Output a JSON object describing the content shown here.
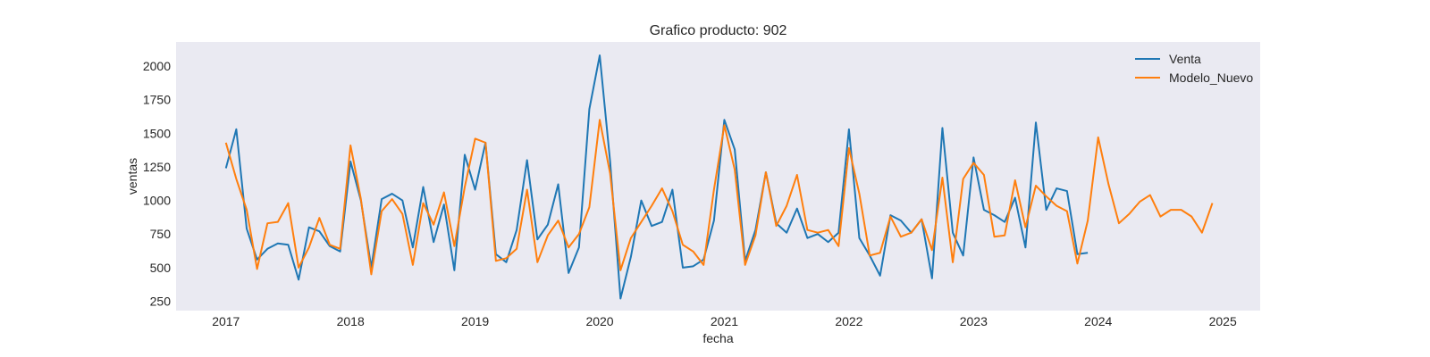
{
  "chart_data": {
    "type": "line",
    "title": "Grafico producto: 902",
    "xlabel": "fecha",
    "ylabel": "ventas",
    "xlim": [
      2016.6,
      2025.3
    ],
    "ylim": [
      180,
      2180
    ],
    "x_ticks": [
      2017,
      2018,
      2019,
      2020,
      2021,
      2022,
      2023,
      2024,
      2025
    ],
    "x_tick_labels": [
      "2017",
      "2018",
      "2019",
      "2020",
      "2021",
      "2022",
      "2023",
      "2024",
      "2025"
    ],
    "y_ticks": [
      250,
      500,
      750,
      1000,
      1250,
      1500,
      1750,
      2000
    ],
    "y_tick_labels": [
      "250",
      "500",
      "750",
      "1000",
      "1250",
      "1500",
      "1750",
      "2000"
    ],
    "grid": false,
    "background": "#eaeaf2",
    "legend_position": "top-right",
    "x_unit": "year (monthly points)",
    "series": [
      {
        "name": "Venta",
        "color": "#1f77b4",
        "x_start": 2017.0,
        "x_step": 0.08333,
        "values": [
          1240,
          1530,
          790,
          560,
          640,
          680,
          670,
          410,
          800,
          770,
          660,
          620,
          1290,
          1000,
          500,
          1010,
          1050,
          1000,
          650,
          1100,
          690,
          970,
          480,
          1340,
          1080,
          1430,
          600,
          540,
          780,
          1300,
          710,
          820,
          1120,
          460,
          650,
          1680,
          2080,
          1290,
          270,
          580,
          1000,
          810,
          840,
          1080,
          500,
          510,
          560,
          850,
          1600,
          1380,
          550,
          780,
          1210,
          830,
          760,
          940,
          720,
          750,
          690,
          760,
          1530,
          720,
          590,
          440,
          890,
          850,
          760,
          860,
          420,
          1540,
          760,
          590,
          1320,
          930,
          890,
          840,
          1020,
          650,
          1580,
          930,
          1090,
          1070,
          600,
          610
        ]
      },
      {
        "name": "Modelo_Nuevo",
        "color": "#ff7f0e",
        "x_start": 2017.0,
        "x_step": 0.08333,
        "values": [
          1430,
          1160,
          930,
          490,
          830,
          840,
          980,
          500,
          650,
          870,
          670,
          640,
          1410,
          1010,
          450,
          920,
          1010,
          900,
          520,
          980,
          820,
          1060,
          660,
          1100,
          1460,
          1430,
          550,
          570,
          640,
          1080,
          540,
          740,
          850,
          650,
          750,
          950,
          1600,
          1200,
          480,
          720,
          840,
          960,
          1090,
          920,
          670,
          620,
          520,
          1080,
          1560,
          1230,
          520,
          740,
          1210,
          810,
          960,
          1190,
          780,
          760,
          780,
          660,
          1390,
          1050,
          590,
          610,
          880,
          730,
          760,
          860,
          630,
          1170,
          540,
          1160,
          1280,
          1190,
          730,
          740,
          1150,
          800,
          1110,
          1030,
          960,
          920,
          530,
          850,
          1470,
          1120,
          830,
          900,
          990,
          1040,
          880,
          930,
          930,
          880,
          760,
          980
        ]
      }
    ]
  }
}
